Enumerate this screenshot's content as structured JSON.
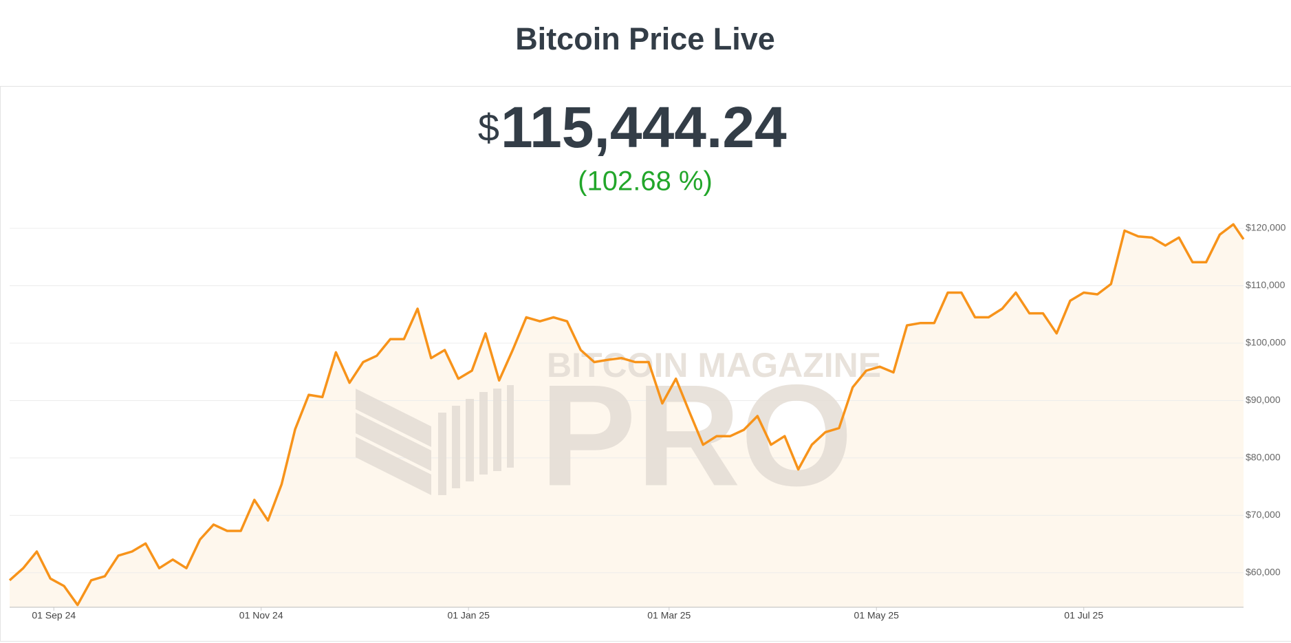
{
  "chart_data": {
    "type": "line",
    "title": "Bitcoin Price Live",
    "currency": "$",
    "price": "115,444.24",
    "change": "(102.68 %)",
    "watermark": [
      "BITCOIN MAGAZINE",
      "PRO"
    ],
    "color": "#f7931a",
    "x": [
      "2024-08-19",
      "2024-08-23",
      "2024-08-27",
      "2024-08-31",
      "2024-09-04",
      "2024-09-08",
      "2024-09-12",
      "2024-09-16",
      "2024-09-20",
      "2024-09-24",
      "2024-09-28",
      "2024-10-02",
      "2024-10-06",
      "2024-10-10",
      "2024-10-14",
      "2024-10-18",
      "2024-10-22",
      "2024-10-26",
      "2024-10-30",
      "2024-11-03",
      "2024-11-07",
      "2024-11-11",
      "2024-11-15",
      "2024-11-19",
      "2024-11-23",
      "2024-11-27",
      "2024-12-01",
      "2024-12-05",
      "2024-12-09",
      "2024-12-13",
      "2024-12-17",
      "2024-12-21",
      "2024-12-25",
      "2024-12-29",
      "2025-01-02",
      "2025-01-06",
      "2025-01-10",
      "2025-01-14",
      "2025-01-18",
      "2025-01-22",
      "2025-01-26",
      "2025-01-30",
      "2025-02-03",
      "2025-02-07",
      "2025-02-11",
      "2025-02-15",
      "2025-02-19",
      "2025-02-23",
      "2025-02-27",
      "2025-03-03",
      "2025-03-07",
      "2025-03-11",
      "2025-03-15",
      "2025-03-19",
      "2025-03-23",
      "2025-03-27",
      "2025-03-31",
      "2025-04-04",
      "2025-04-08",
      "2025-04-12",
      "2025-04-16",
      "2025-04-20",
      "2025-04-24",
      "2025-04-28",
      "2025-05-02",
      "2025-05-06",
      "2025-05-10",
      "2025-05-14",
      "2025-05-18",
      "2025-05-22",
      "2025-05-26",
      "2025-05-30",
      "2025-06-03",
      "2025-06-07",
      "2025-06-11",
      "2025-06-15",
      "2025-06-19",
      "2025-06-23",
      "2025-06-27",
      "2025-07-01",
      "2025-07-05",
      "2025-07-09",
      "2025-07-13",
      "2025-07-17",
      "2025-07-21",
      "2025-07-25",
      "2025-07-29",
      "2025-08-02",
      "2025-08-06",
      "2025-08-10",
      "2025-08-14",
      "2025-08-17"
    ],
    "values": [
      58700,
      60800,
      63700,
      59000,
      57700,
      54400,
      58700,
      59400,
      63000,
      63700,
      65100,
      60800,
      62300,
      60800,
      65800,
      68400,
      67300,
      67300,
      72700,
      69100,
      75400,
      85000,
      91000,
      90600,
      98400,
      93100,
      96700,
      97800,
      100700,
      100700,
      106000,
      97400,
      98800,
      93800,
      95200,
      101700,
      93500,
      98800,
      104500,
      103800,
      104500,
      103800,
      98800,
      96700,
      97100,
      97400,
      96700,
      96700,
      89500,
      93800,
      88000,
      82300,
      83800,
      83800,
      84900,
      87300,
      82300,
      83800,
      78000,
      82300,
      84500,
      85200,
      92300,
      95200,
      95900,
      94900,
      103100,
      103500,
      103500,
      108800,
      108800,
      104500,
      104500,
      106000,
      108800,
      105200,
      105200,
      101700,
      107400,
      108800,
      108500,
      110300,
      119600,
      118600,
      118400,
      117000,
      118400,
      114100,
      114100,
      118900,
      120700,
      118100
    ],
    "xlim": [
      "2024-08-19",
      "2025-08-17"
    ],
    "xticks": [
      {
        "value": "2024-09-01",
        "label": "01 Sep 24"
      },
      {
        "value": "2024-11-01",
        "label": "01 Nov 24"
      },
      {
        "value": "2025-01-01",
        "label": "01 Jan 25"
      },
      {
        "value": "2025-03-01",
        "label": "01 Mar 25"
      },
      {
        "value": "2025-05-01",
        "label": "01 May 25"
      },
      {
        "value": "2025-07-01",
        "label": "01 Jul 25"
      }
    ],
    "ylim": [
      54000,
      124000
    ],
    "yticks": [
      {
        "value": 60000,
        "label": "$60,000"
      },
      {
        "value": 70000,
        "label": "$70,000"
      },
      {
        "value": 80000,
        "label": "$80,000"
      },
      {
        "value": 90000,
        "label": "$90,000"
      },
      {
        "value": 100000,
        "label": "$100,000"
      },
      {
        "value": 110000,
        "label": "$110,000"
      },
      {
        "value": 120000,
        "label": "$120,000"
      }
    ],
    "grid": true
  }
}
